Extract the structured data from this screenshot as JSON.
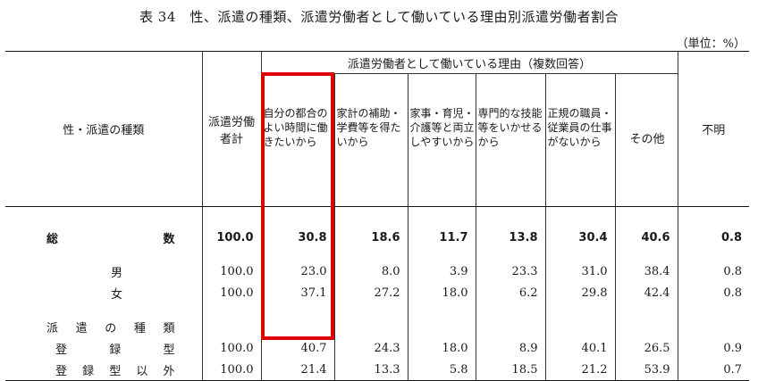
{
  "title": "表 34　性、派遣の種類、派遣労働者として働いている理由別派遣労働者割合",
  "unit": "（単位：%）",
  "header": {
    "col_label": "性・派遣の種類",
    "col_total": "派遣労働者計",
    "group": "派遣労働者として働いている理由（複数回答）",
    "reasons": [
      "自分の都合のよい時間に働きたいから",
      "家計の補助・学費等を得たいから",
      "家事・育児・介護等と両立しやすいから",
      "専門的な技能等をいかせるから",
      "正規の職員・従業員の仕事がないから",
      "その他"
    ],
    "col_unknown": "不明"
  },
  "rows": {
    "total": {
      "label_a": "総",
      "label_b": "数",
      "values": [
        "100.0",
        "30.8",
        "18.6",
        "11.7",
        "13.8",
        "30.4",
        "40.6",
        "0.8"
      ]
    },
    "male": {
      "label": "男",
      "values": [
        "100.0",
        "23.0",
        "8.0",
        "3.9",
        "23.3",
        "31.0",
        "38.4",
        "0.8"
      ]
    },
    "female": {
      "label": "女",
      "values": [
        "100.0",
        "37.1",
        "27.2",
        "18.0",
        "6.2",
        "29.8",
        "42.4",
        "0.8"
      ]
    },
    "section": {
      "label": [
        "派",
        "遣",
        "の",
        "種",
        "類"
      ]
    },
    "registered": {
      "label": [
        "登",
        "録",
        "型"
      ],
      "values": [
        "100.0",
        "40.7",
        "24.3",
        "18.0",
        "8.9",
        "40.1",
        "26.5",
        "0.9"
      ]
    },
    "other": {
      "label": [
        "登",
        "録",
        "型",
        "以",
        "外"
      ],
      "values": [
        "100.0",
        "21.4",
        "13.3",
        "5.8",
        "18.5",
        "21.2",
        "53.9",
        "0.7"
      ]
    }
  },
  "highlight_color": "#e00000"
}
